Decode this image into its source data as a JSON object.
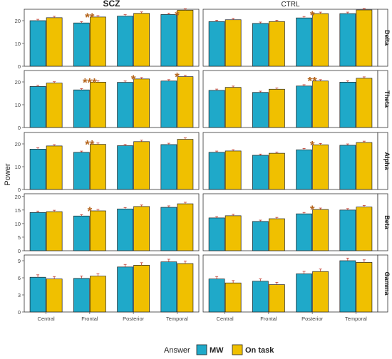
{
  "chart_data": {
    "type": "bar",
    "ylabel": "Power",
    "categories": [
      "Central",
      "Frontal",
      "Posterior",
      "Temporal"
    ],
    "columns": [
      "SCZ",
      "CTRL"
    ],
    "legend": {
      "title": "Answer",
      "position": "bottom",
      "entries": [
        {
          "name": "MW",
          "color": "#1fa9c9"
        },
        {
          "name": "On task",
          "color": "#f0c000"
        }
      ]
    },
    "panels": [
      {
        "band": "Delta",
        "ylim": [
          0,
          25
        ],
        "ticks": [
          0,
          10,
          20
        ],
        "SCZ": {
          "MW": [
            20.0,
            19.0,
            22.0,
            22.7
          ],
          "On task": [
            21.3,
            21.6,
            23.2,
            24.6
          ],
          "stars": [
            "",
            "**",
            "",
            "*"
          ]
        },
        "CTRL": {
          "MW": [
            19.6,
            18.8,
            21.2,
            23.1
          ],
          "On task": [
            20.4,
            19.6,
            23.1,
            24.7
          ],
          "stars": [
            "",
            "",
            "*",
            ""
          ]
        }
      },
      {
        "band": "Theta",
        "ylim": [
          0,
          25
        ],
        "ticks": [
          0,
          10,
          20
        ],
        "SCZ": {
          "MW": [
            18.0,
            16.5,
            19.8,
            20.4
          ],
          "On task": [
            19.5,
            19.9,
            21.3,
            22.3
          ],
          "stars": [
            "",
            "***",
            "*",
            "*"
          ]
        },
        "CTRL": {
          "MW": [
            16.3,
            15.4,
            18.2,
            19.9
          ],
          "On task": [
            17.6,
            16.8,
            20.4,
            21.6
          ],
          "stars": [
            "",
            "",
            "**",
            ""
          ]
        }
      },
      {
        "band": "Alpha",
        "ylim": [
          0,
          25
        ],
        "ticks": [
          0,
          10,
          20
        ],
        "SCZ": {
          "MW": [
            17.7,
            16.3,
            19.2,
            19.7
          ],
          "On task": [
            19.1,
            19.8,
            21.0,
            22.0
          ],
          "stars": [
            "",
            "**",
            "",
            ""
          ]
        },
        "CTRL": {
          "MW": [
            16.3,
            15.0,
            17.4,
            19.4
          ],
          "On task": [
            16.9,
            15.9,
            19.6,
            20.6
          ],
          "stars": [
            "",
            "",
            "*",
            ""
          ]
        }
      },
      {
        "band": "Beta",
        "ylim": [
          0,
          21
        ],
        "ticks": [
          0,
          5,
          10,
          15,
          20
        ],
        "SCZ": {
          "MW": [
            14.1,
            12.8,
            15.4,
            16.0
          ],
          "On task": [
            14.4,
            14.7,
            16.3,
            17.3
          ],
          "stars": [
            "",
            "*",
            "",
            ""
          ]
        },
        "CTRL": {
          "MW": [
            12.1,
            10.8,
            13.6,
            15.0
          ],
          "On task": [
            12.9,
            11.8,
            15.2,
            16.1
          ],
          "stars": [
            "",
            "",
            "*",
            ""
          ]
        }
      },
      {
        "band": "Gamma",
        "ylim": [
          0,
          10
        ],
        "ticks": [
          0,
          3,
          6,
          9
        ],
        "SCZ": {
          "MW": [
            6.1,
            5.9,
            7.9,
            8.8
          ],
          "On task": [
            5.8,
            6.3,
            8.2,
            8.5
          ],
          "stars": [
            "",
            "",
            "",
            ""
          ]
        },
        "CTRL": {
          "MW": [
            5.8,
            5.4,
            6.7,
            9.0
          ],
          "On task": [
            5.1,
            4.8,
            7.1,
            8.7
          ],
          "stars": [
            "",
            "",
            "",
            ""
          ]
        }
      }
    ]
  }
}
